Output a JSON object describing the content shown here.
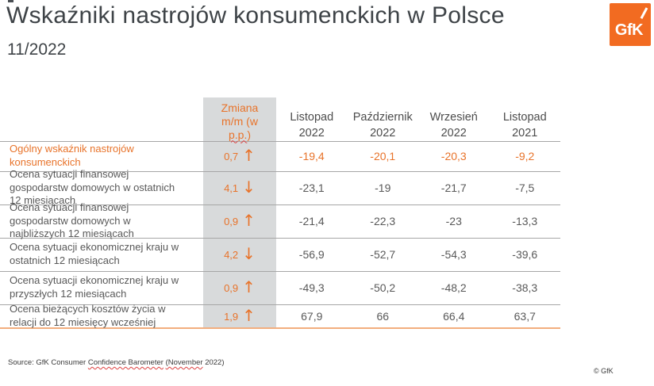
{
  "header": {
    "title": "Wskaźniki nastrojów konsumenckich w Polsce",
    "subtitle": "11/2022",
    "logo": {
      "text": "GfK"
    }
  },
  "table": {
    "change_header": {
      "line1": "Zmiana",
      "line2": "m/m (w",
      "line3_wavy": "p.p.",
      "line3_rest": ")"
    },
    "month_columns": [
      "Listopad\n2022",
      "Październik\n2022",
      "Wrzesień\n2022",
      "Listopad\n2021"
    ],
    "rows": [
      {
        "label": "Ogólny wskaźnik nastrojów konsumenckich",
        "change": "0,7",
        "arrow": "↑",
        "direction": "up",
        "values": [
          "-19,4",
          "-20,1",
          "-20,3",
          "-9,2"
        ],
        "highlight": true
      },
      {
        "label": "Ocena sytuacji finansowej gospodarstw domowych w ostatnich 12 miesiącach",
        "change": "4,1",
        "arrow": "↓",
        "direction": "down",
        "values": [
          "-23,1",
          "-19",
          "-21,7",
          "-7,5"
        ],
        "highlight": false
      },
      {
        "label": "Ocena sytuacji finansowej gospodarstw domowych w najbliższych 12 miesiącach",
        "change": "0,9",
        "arrow": "↑",
        "direction": "up",
        "values": [
          "-21,4",
          "-22,3",
          "-23",
          "-13,3"
        ],
        "highlight": false
      },
      {
        "label": "Ocena sytuacji ekonomicznej kraju w ostatnich 12 miesiącach",
        "change": "4,2",
        "arrow": "↓",
        "direction": "down",
        "values": [
          "-56,9",
          "-52,7",
          "-54,3",
          "-39,6"
        ],
        "highlight": false
      },
      {
        "label": "Ocena sytuacji ekonomicznej kraju w przyszłych 12 miesiącach",
        "change": "0,9",
        "arrow": "↑",
        "direction": "up",
        "values": [
          "-49,3",
          "-50,2",
          "-48,2",
          "-38,3"
        ],
        "highlight": false
      },
      {
        "label": "Ocena bieżących kosztów życia w relacji do 12 miesięcy wcześniej",
        "change": "1,9",
        "arrow": "↑",
        "direction": "up",
        "values": [
          "67,9",
          "66",
          "66,4",
          "63,7"
        ],
        "highlight": false
      }
    ]
  },
  "footer": {
    "source": {
      "part1": "Source: GfK Consumer ",
      "wavy1": "Confidence Barometer",
      "sep": " ",
      "wavy2": "(November",
      "part2": " 2022)"
    },
    "copyright": "© GfK"
  },
  "colors": {
    "accent_orange": "#E8732A",
    "logo_orange": "#F26B21",
    "change_column_bg": "#D8DADB",
    "row_separator": "#A6A6A6",
    "table_bottom_line": "#F2AE7E",
    "text_gray": "#595959",
    "title_gray": "#3E4347",
    "spellcheck_red": "#DD4040"
  },
  "chart_data": {
    "type": "table",
    "title": "Wskaźniki nastrojów konsumenckich w Polsce 11/2022",
    "columns": [
      "Zmiana m/m (w p.p.)",
      "Listopad 2022",
      "Październik 2022",
      "Wrzesień 2022",
      "Listopad 2021"
    ],
    "rows": [
      [
        "Ogólny wskaźnik nastrojów konsumenckich",
        "0,7 ↑",
        -19.4,
        -20.1,
        -20.3,
        -9.2
      ],
      [
        "Ocena sytuacji finansowej gospodarstw domowych w ostatnich 12 miesiącach",
        "4,1 ↓",
        -23.1,
        -19,
        -21.7,
        -7.5
      ],
      [
        "Ocena sytuacji finansowej gospodarstw domowych w najbliższych 12 miesiącach",
        "0,9 ↑",
        -21.4,
        -22.3,
        -23,
        -13.3
      ],
      [
        "Ocena sytuacji ekonomicznej kraju w ostatnich 12 miesiącach",
        "4,2 ↓",
        -56.9,
        -52.7,
        -54.3,
        -39.6
      ],
      [
        "Ocena sytuacji ekonomicznej kraju w przyszłych 12 miesiącach",
        "0,9 ↑",
        -49.3,
        -50.2,
        -48.2,
        -38.3
      ],
      [
        "Ocena bieżących kosztów życia w relacji do 12 miesięcy wcześniej",
        "1,9 ↑",
        67.9,
        66,
        66.4,
        63.7
      ]
    ]
  }
}
